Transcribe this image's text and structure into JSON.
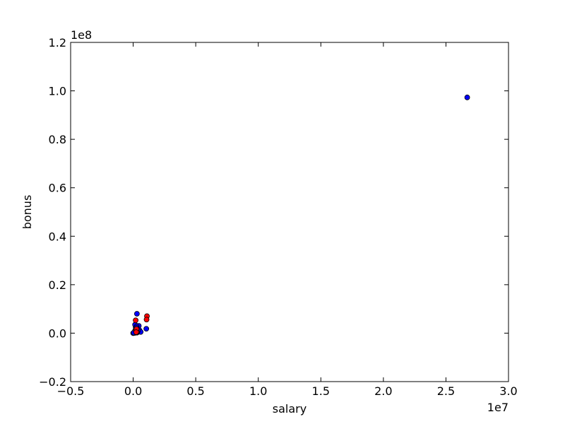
{
  "chart_data": {
    "type": "scatter",
    "title": "",
    "xlabel": "salary",
    "ylabel": "bonus",
    "xlim": [
      -5000000,
      30000000
    ],
    "ylim": [
      -20000000,
      120000000
    ],
    "grid": false,
    "x_offset_text": "1e7",
    "y_offset_text": "1e8",
    "x_tick_values": [
      -5000000,
      0,
      5000000,
      10000000,
      15000000,
      20000000,
      25000000,
      30000000
    ],
    "x_tick_labels": [
      "−0.5",
      "0.0",
      "0.5",
      "1.0",
      "1.5",
      "2.0",
      "2.5",
      "3.0"
    ],
    "y_tick_values": [
      -20000000,
      0,
      20000000,
      40000000,
      60000000,
      80000000,
      100000000,
      120000000
    ],
    "y_tick_labels": [
      "−0.2",
      "0.0",
      "0.2",
      "0.4",
      "0.6",
      "0.8",
      "1.0",
      "1.2"
    ],
    "colors": {
      "blue": "#0000ff",
      "red": "#ff0000",
      "edge": "#000000"
    },
    "series": [
      {
        "color": "blue",
        "points": [
          [
            26700000,
            97300000
          ],
          [
            300000,
            8000000
          ],
          [
            1050000,
            1800000
          ],
          [
            450000,
            3000000
          ],
          [
            200000,
            2500000
          ],
          [
            150000,
            3500000
          ],
          [
            250000,
            2000000
          ],
          [
            350000,
            1500000
          ],
          [
            400000,
            800000
          ],
          [
            500000,
            1200000
          ],
          [
            600000,
            500000
          ],
          [
            100000,
            300000
          ],
          [
            0,
            0
          ],
          [
            200000,
            500000
          ],
          [
            300000,
            200000
          ],
          [
            150000,
            1000000
          ],
          [
            280000,
            2800000
          ],
          [
            330000,
            600000
          ],
          [
            220000,
            1600000
          ],
          [
            180000,
            700000
          ],
          [
            120000,
            100000
          ],
          [
            260000,
            2200000
          ],
          [
            380000,
            1000000
          ],
          [
            50000,
            200000
          ]
        ]
      },
      {
        "color": "red",
        "points": [
          [
            1100000,
            7000000
          ],
          [
            1070000,
            5600000
          ],
          [
            200000,
            5300000
          ],
          [
            250000,
            1000000
          ],
          [
            300000,
            500000
          ],
          [
            210000,
            1200000
          ],
          [
            270000,
            1700000
          ],
          [
            240000,
            400000
          ]
        ]
      }
    ]
  }
}
